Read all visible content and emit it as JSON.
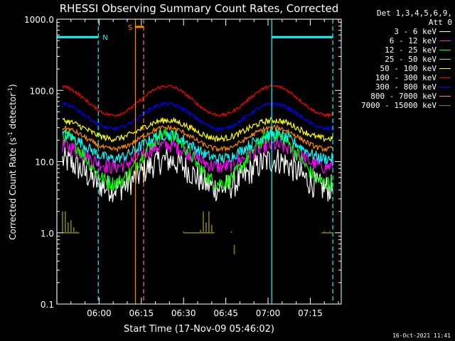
{
  "chart_data": {
    "type": "line",
    "title": "RHESSI Observing Summary Count Rates, Corrected",
    "xlabel": "Start Time (17-Nov-09 05:46:02)",
    "ylabel_main": "Corrected Count Rate (s",
    "ylabel_sup1": "-1",
    "ylabel_mid": " detector",
    "ylabel_sup2": "-1",
    "ylabel_end": ")",
    "y_scale": "log",
    "ylim": [
      0.1,
      1000
    ],
    "y_ticks": [
      "0.1",
      "1.0",
      "10.0",
      "100.0",
      "1000.0"
    ],
    "x_range_min": [
      -1.0,
      100.0
    ],
    "x_ticks": [
      {
        "value": 14,
        "label": "06:00"
      },
      {
        "value": 29,
        "label": "06:15"
      },
      {
        "value": 44,
        "label": "06:30"
      },
      {
        "value": 59,
        "label": "06:45"
      },
      {
        "value": 74,
        "label": "07:00"
      },
      {
        "value": 89,
        "label": "07:15"
      }
    ],
    "legend_header": [
      "Det 1,3,4,5,6,9,",
      "Att 0"
    ],
    "series": [
      {
        "name": "3 - 6 keV",
        "color": "#ffffff",
        "low": 4.2,
        "high": 10.5,
        "noise": 0.45
      },
      {
        "name": "6 - 12 keV",
        "color": "#ff00ff",
        "low": 8.5,
        "high": 17.0,
        "noise": 0.25
      },
      {
        "name": "12 - 25 keV",
        "color": "#00ff00",
        "low": 5.0,
        "high": 24.0,
        "noise": 0.25
      },
      {
        "name": "25 - 50 keV",
        "color": "#00ffff",
        "low": 11.0,
        "high": 24.0,
        "noise": 0.18
      },
      {
        "name": "50 - 100 keV",
        "color": "#ffff00",
        "low": 21.0,
        "high": 38.0,
        "noise": 0.1
      },
      {
        "name": "100 - 300 keV",
        "color": "#ff0000",
        "low": 45.0,
        "high": 115.0,
        "noise": 0.05
      },
      {
        "name": "300 - 800 keV",
        "color": "#0000ff",
        "low": 29.0,
        "high": 65.0,
        "noise": 0.06
      },
      {
        "name": "800 - 7000 keV",
        "color": "#ff8800",
        "low": 15.0,
        "high": 30.0,
        "noise": 0.08
      },
      {
        "name": "7000 - 15000 keV",
        "color": "#808000",
        "low": 1.0,
        "high": 1.0,
        "noise": 0.0
      }
    ],
    "flags": [
      {
        "label": "N",
        "color": "#00ffff",
        "segments": [
          [
            -1.0,
            13.7
          ],
          [
            75.3,
            97.0
          ]
        ],
        "level": 560
      },
      {
        "label": "S",
        "color": "#ff8800",
        "segments": [
          [
            26.9,
            29.8
          ]
        ],
        "level": 780
      }
    ],
    "markers": [
      {
        "color": "#00ffff",
        "x": -1.0,
        "style": "solid"
      },
      {
        "color": "#00ffff",
        "x": 13.7,
        "style": "dashed"
      },
      {
        "color": "#00ffff",
        "x": 75.3,
        "style": "solid"
      },
      {
        "color": "#00ffff",
        "x": 97.0,
        "style": "dashed"
      },
      {
        "color": "#ff8800",
        "x": 26.9,
        "style": "solid"
      },
      {
        "color": "#ff8800",
        "x": 29.8,
        "style": "dashed"
      }
    ],
    "grid": false,
    "legend_placement": "top-right outside"
  },
  "timestamp": "16-Oct-2021 11:41"
}
